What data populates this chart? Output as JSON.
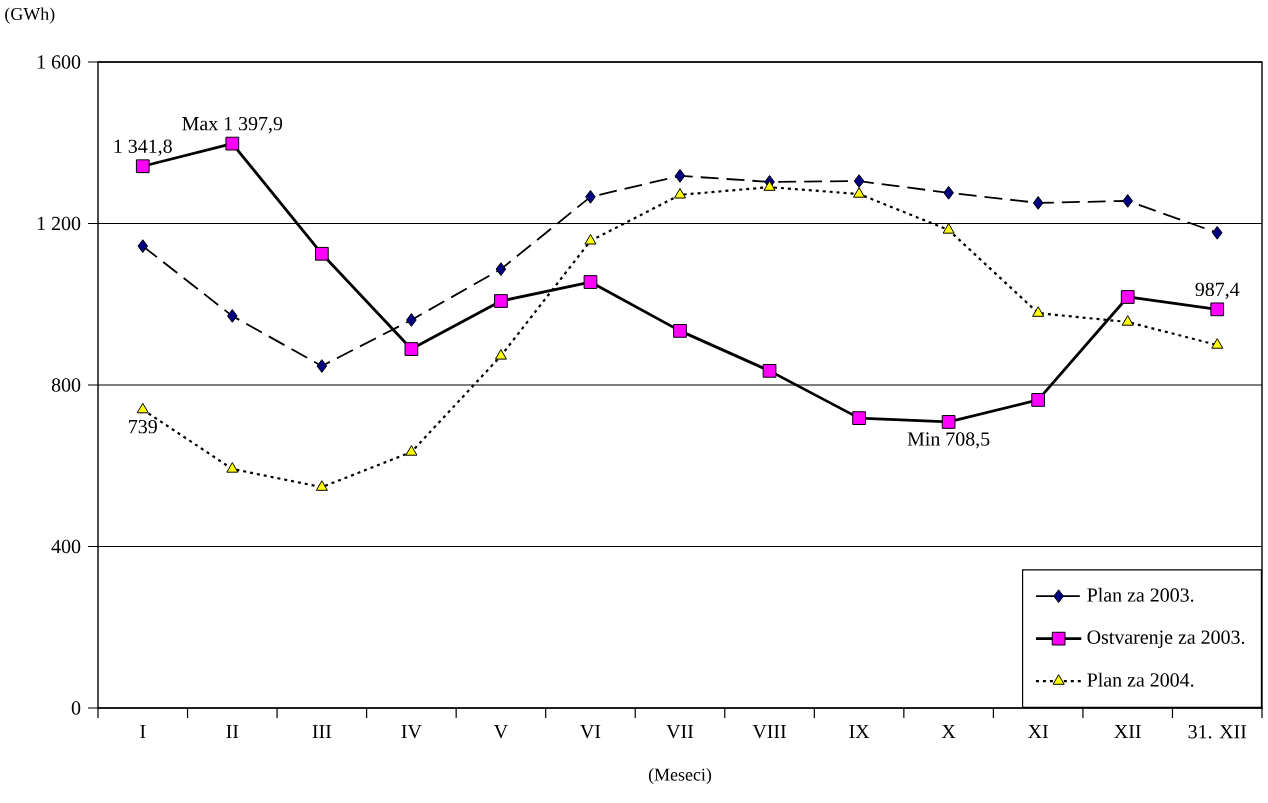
{
  "chart_data": {
    "type": "line",
    "ylabel": "(GWh)",
    "xlabel": "(Meseci)",
    "categories": [
      "I",
      "II",
      "III",
      "IV",
      "V",
      "VI",
      "VII",
      "VIII",
      "IX",
      "X",
      "XI",
      "XII",
      "31. XII"
    ],
    "ylim": [
      0,
      1600
    ],
    "yticks": [
      0,
      400,
      800,
      {
        "value": 1200,
        "label": "1 200"
      },
      {
        "value": 1600,
        "label": "1 600"
      }
    ],
    "grid": "y",
    "legend": "bottom right",
    "series": [
      {
        "name": "Plan za 2003.",
        "color": "#000080",
        "marker": "diamond",
        "line_style": "dashed",
        "values": [
          1144,
          971,
          847,
          961,
          1087,
          1266,
          1318,
          1303,
          1305,
          1276,
          1251,
          1256,
          1177
        ]
      },
      {
        "name": "Ostvarenje za 2003.",
        "color": "#ff00ff",
        "marker": "square",
        "line_style": "solid",
        "values": [
          1341.8,
          1397.9,
          1125,
          889,
          1008,
          1055,
          934,
          835,
          718,
          708.5,
          763,
          1018,
          987.4
        ]
      },
      {
        "name": "Plan za 2004.",
        "color": "#ffff00",
        "marker": "triangle",
        "line_style": "dotted",
        "values": [
          739,
          592,
          547,
          634,
          872,
          1157,
          1271,
          1290,
          1273,
          1184,
          978,
          956,
          899
        ]
      }
    ],
    "annotations": [
      {
        "text": "Max 1 397,9",
        "x": "II",
        "y": 1397.9
      },
      {
        "text": "1 341,8",
        "x": "I",
        "y": 1341.8
      },
      {
        "text": "739",
        "x": "I",
        "y": 739
      },
      {
        "text": "Min 708,5",
        "x": "X",
        "y": 708.5
      },
      {
        "text": "987,4",
        "x": "31. XII",
        "y": 987.4
      }
    ]
  }
}
